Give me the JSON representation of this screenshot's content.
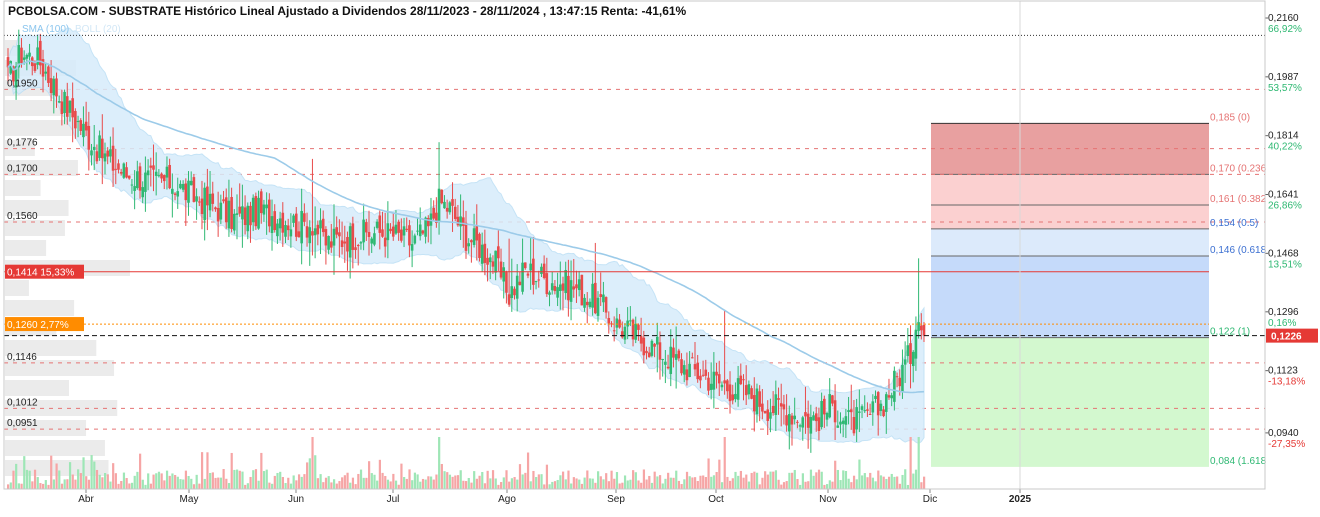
{
  "header": {
    "title": "PCBOLSA.COM - SUBSTRATE Histórico Lineal Ajustado a Dividendos 28/11/2023 - 28/11/2024 , 13:47:15 Renta: -41,61%",
    "legend_sma": "SMA (100)",
    "legend_boll": "BOLL (20)"
  },
  "colors": {
    "up": "#2eb872",
    "down": "#e84a4a",
    "sma": "#9ccbe9",
    "boll_fill": "#d6ecfb",
    "current": "#ff8c00",
    "accent_red": "#e53935",
    "fib_red_dark": "#e8a0a0",
    "fib_red_light": "#fbd0d0",
    "fib_blue_light": "#dceafb",
    "fib_blue": "#c5dafa",
    "fib_green": "#d3f8cf"
  },
  "chart_data": {
    "type": "candlestick",
    "x_labels": [
      "Abr",
      "May",
      "Jun",
      "Jul",
      "Ago",
      "Sep",
      "Oct",
      "Nov",
      "Dic",
      "2025"
    ],
    "y_range": [
      0.0775,
      0.221
    ],
    "y_ticks": [
      {
        "price": "0,2160",
        "pct": "66,92%"
      },
      {
        "price": "0,1987",
        "pct": "53,57%"
      },
      {
        "price": "0,1814",
        "pct": "40,22%"
      },
      {
        "price": "0,1641",
        "pct": "26,86%"
      },
      {
        "price": "0,1468",
        "pct": "13,51%"
      },
      {
        "price": "0,1296",
        "pct": "0,16%"
      },
      {
        "price": "0,1123",
        "pct": "-13,18%"
      },
      {
        "price": "0,0940",
        "pct": "-27,35%"
      }
    ],
    "price_levels": [
      {
        "value": 0.195,
        "label": "0,1950"
      },
      {
        "value": 0.1776,
        "label": "0,1776"
      },
      {
        "value": 0.17,
        "label": "0,1700"
      },
      {
        "value": 0.156,
        "label": "0,1560"
      },
      {
        "value": 0.1146,
        "label": "0,1146"
      },
      {
        "value": 0.1012,
        "label": "0,1012"
      },
      {
        "value": 0.0951,
        "label": "0,0951"
      }
    ],
    "resistance": {
      "value": 0.1414,
      "label": "0,1414",
      "pct": "15,33%"
    },
    "reference": {
      "value": 0.126,
      "label": "0,1260",
      "pct": "2,77%"
    },
    "current_price": {
      "value": 0.1226,
      "label": "0,1226"
    },
    "top_line": 0.2109,
    "fibonacci": [
      {
        "value": 0.185,
        "label": "0,185 (0)"
      },
      {
        "value": 0.17,
        "label": "0,170 (0.236"
      },
      {
        "value": 0.161,
        "label": "0,161 (0.382"
      },
      {
        "value": 0.154,
        "label": "0,154 (0.5)"
      },
      {
        "value": 0.146,
        "label": "0,146 (0.618"
      },
      {
        "value": 0.122,
        "label": "0,122 (1)"
      },
      {
        "value": 0.084,
        "label": "0,084 (1.618"
      }
    ],
    "anchors": [
      [
        0,
        0.198
      ],
      [
        5,
        0.206
      ],
      [
        12,
        0.203
      ],
      [
        20,
        0.192
      ],
      [
        28,
        0.183
      ],
      [
        36,
        0.175
      ],
      [
        44,
        0.17
      ],
      [
        54,
        0.168
      ],
      [
        60,
        0.168
      ],
      [
        68,
        0.164
      ],
      [
        76,
        0.161
      ],
      [
        84,
        0.157
      ],
      [
        92,
        0.159
      ],
      [
        100,
        0.158
      ],
      [
        108,
        0.155
      ],
      [
        113,
        0.156
      ],
      [
        118,
        0.15
      ],
      [
        128,
        0.152
      ],
      [
        138,
        0.153
      ],
      [
        144,
        0.152
      ],
      [
        150,
        0.15
      ],
      [
        156,
        0.154
      ],
      [
        160,
        0.162
      ],
      [
        164,
        0.16
      ],
      [
        170,
        0.152
      ],
      [
        175,
        0.149
      ],
      [
        180,
        0.145
      ],
      [
        186,
        0.135
      ],
      [
        192,
        0.142
      ],
      [
        200,
        0.139
      ],
      [
        210,
        0.137
      ],
      [
        218,
        0.133
      ],
      [
        226,
        0.126
      ],
      [
        234,
        0.122
      ],
      [
        242,
        0.118
      ],
      [
        250,
        0.114
      ],
      [
        258,
        0.111
      ],
      [
        266,
        0.108
      ],
      [
        274,
        0.106
      ],
      [
        282,
        0.102
      ],
      [
        288,
        0.101
      ],
      [
        294,
        0.099
      ],
      [
        300,
        0.098
      ],
      [
        306,
        0.102
      ],
      [
        312,
        0.097
      ],
      [
        318,
        0.098
      ],
      [
        324,
        0.102
      ],
      [
        330,
        0.11
      ],
      [
        335,
        0.117
      ],
      [
        338,
        0.131
      ],
      [
        340,
        0.1226
      ]
    ]
  }
}
